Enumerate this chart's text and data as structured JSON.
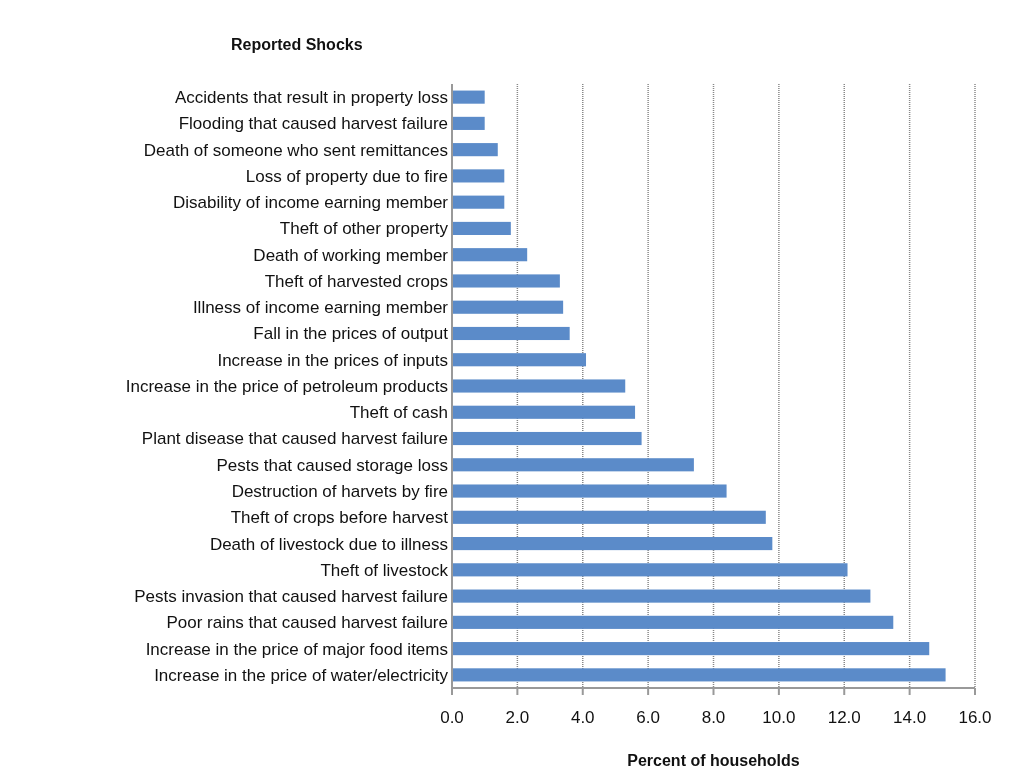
{
  "chart_data": {
    "type": "bar",
    "orientation": "horizontal",
    "title": "Reported Shocks",
    "xlabel": "Percent of households",
    "categories": [
      "Accidents that result in property loss",
      "Flooding that caused harvest failure",
      "Death of someone who sent remittances",
      "Loss of property due to fire",
      "Disability of income earning member",
      "Theft of other property",
      "Death of working member",
      "Theft of harvested crops",
      "Illness of income earning member",
      "Fall in the prices of output",
      "Increase in the prices of inputs",
      "Increase in the price of petroleum products",
      "Theft of cash",
      "Plant disease that caused harvest failure",
      "Pests that caused storage loss",
      "Destruction of harvets by fire",
      "Theft of crops before harvest",
      "Death of livestock due to illness",
      "Theft of livestock",
      "Pests invasion that caused harvest failure",
      "Poor rains that caused harvest failure",
      "Increase in the price of major food items",
      "Increase in the price of water/electricity"
    ],
    "values": [
      1.0,
      1.0,
      1.4,
      1.6,
      1.6,
      1.8,
      2.3,
      3.3,
      3.4,
      3.6,
      4.1,
      5.3,
      5.6,
      5.8,
      7.4,
      8.4,
      9.6,
      9.8,
      12.1,
      12.8,
      13.5,
      14.6,
      15.1
    ],
    "color": "#5b8bc9",
    "xlim": [
      0,
      16
    ],
    "xticks": [
      {
        "value": 0,
        "label": "0.0"
      },
      {
        "value": 2,
        "label": "2.0"
      },
      {
        "value": 4,
        "label": "4.0"
      },
      {
        "value": 6,
        "label": "6.0"
      },
      {
        "value": 8,
        "label": "8.0"
      },
      {
        "value": 10,
        "label": "10.0"
      },
      {
        "value": 12,
        "label": "12.0"
      },
      {
        "value": 14,
        "label": "14.0"
      },
      {
        "value": 16,
        "label": "16.0"
      }
    ],
    "grid": "x"
  }
}
